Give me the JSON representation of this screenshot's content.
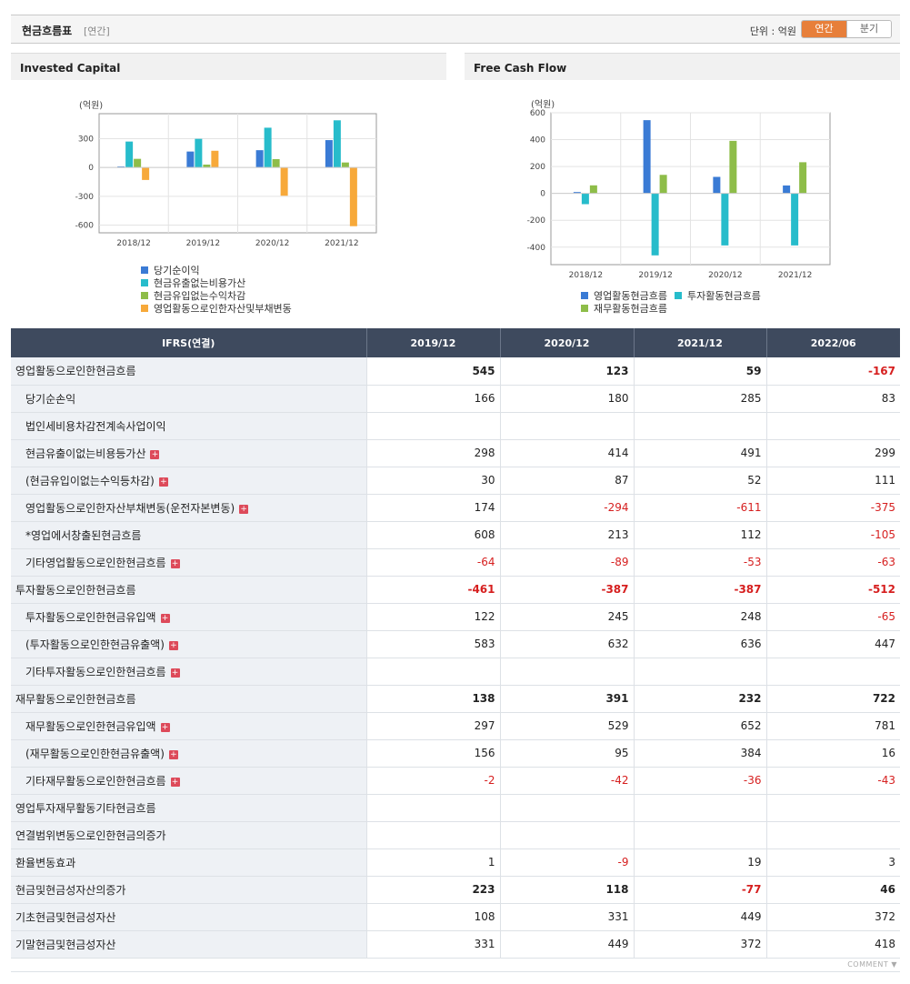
{
  "header": {
    "title": "현금흐름표",
    "sub": "[연간]",
    "unit": "단위 : 억원",
    "tabs": {
      "annual": "연간",
      "quarter": "분기"
    }
  },
  "colors": {
    "blue": "#3a7bd5",
    "teal": "#27bccb",
    "green": "#8ebd49",
    "orange": "#f7a93a",
    "negative": "#d61f1f",
    "accent": "#e77f3a"
  },
  "chart_data": [
    {
      "type": "bar",
      "title": "Invested Capital",
      "ylabel": "(억원)",
      "categories": [
        "2018/12",
        "2019/12",
        "2020/12",
        "2021/12"
      ],
      "yticks": [
        "300",
        "0",
        "-300",
        "-600"
      ],
      "ylim": [
        -680,
        560
      ],
      "grid": true,
      "legend_position": "bottom",
      "series": [
        {
          "name": "당기순이익",
          "color": "#3a7bd5",
          "values": [
            10,
            166,
            180,
            285
          ]
        },
        {
          "name": "현금유출없는비용가산",
          "color": "#27bccb",
          "values": [
            270,
            298,
            414,
            491
          ]
        },
        {
          "name": "현금유입없는수익차감",
          "color": "#8ebd49",
          "values": [
            90,
            30,
            87,
            52
          ]
        },
        {
          "name": "영업활동으로인한자산및부채변동",
          "color": "#f7a93a",
          "values": [
            -130,
            174,
            -294,
            -611
          ]
        }
      ]
    },
    {
      "type": "bar",
      "title": "Free Cash Flow",
      "ylabel": "(억원)",
      "categories": [
        "2018/12",
        "2019/12",
        "2020/12",
        "2021/12"
      ],
      "yticks": [
        "600",
        "400",
        "200",
        "0",
        "-200",
        "-400"
      ],
      "ylim": [
        -530,
        600
      ],
      "grid": true,
      "legend_position": "bottom",
      "series": [
        {
          "name": "영업활동현금흐름",
          "color": "#3a7bd5",
          "values": [
            10,
            545,
            123,
            59
          ]
        },
        {
          "name": "투자활동현금흐름",
          "color": "#27bccb",
          "values": [
            -80,
            -461,
            -387,
            -387
          ]
        },
        {
          "name": "재무활동현금흐름",
          "color": "#8ebd49",
          "values": [
            60,
            138,
            391,
            232
          ]
        }
      ]
    }
  ],
  "table": {
    "head": [
      "IFRS(연결)",
      "2019/12",
      "2020/12",
      "2021/12",
      "2022/06"
    ],
    "rows": [
      {
        "label": "영업활동으로인한현금흐름",
        "level": 0,
        "major": true,
        "plus": false,
        "values": [
          "545",
          "123",
          "59",
          "-167"
        ]
      },
      {
        "label": "당기순손익",
        "level": 1,
        "major": false,
        "plus": false,
        "values": [
          "166",
          "180",
          "285",
          "83"
        ]
      },
      {
        "label": "법인세비용차감전계속사업이익",
        "level": 1,
        "major": false,
        "plus": false,
        "values": [
          "",
          "",
          "",
          ""
        ]
      },
      {
        "label": "현금유출이없는비용등가산",
        "level": 1,
        "major": false,
        "plus": true,
        "values": [
          "298",
          "414",
          "491",
          "299"
        ]
      },
      {
        "label": "(현금유입이없는수익등차감)",
        "level": 1,
        "major": false,
        "plus": true,
        "values": [
          "30",
          "87",
          "52",
          "111"
        ]
      },
      {
        "label": "영업활동으로인한자산부채변동(운전자본변동)",
        "level": 1,
        "major": false,
        "plus": true,
        "values": [
          "174",
          "-294",
          "-611",
          "-375"
        ]
      },
      {
        "label": "*영업에서창출된현금흐름",
        "level": 1,
        "major": false,
        "plus": false,
        "values": [
          "608",
          "213",
          "112",
          "-105"
        ]
      },
      {
        "label": "기타영업활동으로인한현금흐름",
        "level": 1,
        "major": false,
        "plus": true,
        "values": [
          "-64",
          "-89",
          "-53",
          "-63"
        ]
      },
      {
        "label": "투자활동으로인한현금흐름",
        "level": 0,
        "major": true,
        "plus": false,
        "values": [
          "-461",
          "-387",
          "-387",
          "-512"
        ]
      },
      {
        "label": "투자활동으로인한현금유입액",
        "level": 1,
        "major": false,
        "plus": true,
        "values": [
          "122",
          "245",
          "248",
          "-65"
        ]
      },
      {
        "label": "(투자활동으로인한현금유출액)",
        "level": 1,
        "major": false,
        "plus": true,
        "values": [
          "583",
          "632",
          "636",
          "447"
        ]
      },
      {
        "label": "기타투자활동으로인한현금흐름",
        "level": 1,
        "major": false,
        "plus": true,
        "values": [
          "",
          "",
          "",
          ""
        ]
      },
      {
        "label": "재무활동으로인한현금흐름",
        "level": 0,
        "major": true,
        "plus": false,
        "values": [
          "138",
          "391",
          "232",
          "722"
        ]
      },
      {
        "label": "재무활동으로인한현금유입액",
        "level": 1,
        "major": false,
        "plus": true,
        "values": [
          "297",
          "529",
          "652",
          "781"
        ]
      },
      {
        "label": "(재무활동으로인한현금유출액)",
        "level": 1,
        "major": false,
        "plus": true,
        "values": [
          "156",
          "95",
          "384",
          "16"
        ]
      },
      {
        "label": "기타재무활동으로인한현금흐름",
        "level": 1,
        "major": false,
        "plus": true,
        "values": [
          "-2",
          "-42",
          "-36",
          "-43"
        ]
      },
      {
        "label": "영업투자재무활동기타현금흐름",
        "level": 0,
        "major": false,
        "plus": false,
        "values": [
          "",
          "",
          "",
          ""
        ]
      },
      {
        "label": "연결범위변동으로인한현금의증가",
        "level": 0,
        "major": false,
        "plus": false,
        "values": [
          "",
          "",
          "",
          ""
        ]
      },
      {
        "label": "환율변동효과",
        "level": 0,
        "major": false,
        "plus": false,
        "values": [
          "1",
          "-9",
          "19",
          "3"
        ]
      },
      {
        "label": "현금및현금성자산의증가",
        "level": 0,
        "major": true,
        "plus": false,
        "values": [
          "223",
          "118",
          "-77",
          "46"
        ]
      },
      {
        "label": "기초현금및현금성자산",
        "level": 0,
        "major": false,
        "plus": false,
        "values": [
          "108",
          "331",
          "449",
          "372"
        ]
      },
      {
        "label": "기말현금및현금성자산",
        "level": 0,
        "major": false,
        "plus": false,
        "values": [
          "331",
          "449",
          "372",
          "418"
        ]
      }
    ]
  },
  "footer": {
    "comment": "COMMENT ▼"
  }
}
